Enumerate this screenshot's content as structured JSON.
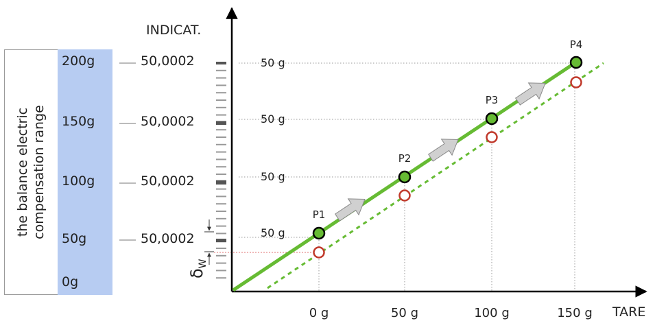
{
  "side_title": [
    "the balance electric",
    "compensation range"
  ],
  "capacities": [
    "200g",
    "150g",
    "100g",
    "50g",
    "0g"
  ],
  "indications": [
    "50,0002",
    "50,0002",
    "50,0002",
    "50,0002"
  ],
  "y_axis_label": "INDICAT.",
  "x_axis_label": "TARE",
  "tare_ticks": [
    "0 g",
    "50 g",
    "100 g",
    "150 g"
  ],
  "step_labels": [
    "50 g",
    "50 g",
    "50 g",
    "50 g"
  ],
  "points": [
    "P1",
    "P2",
    "P3",
    "P4"
  ],
  "delta_symbol": "δ",
  "delta_sub": "W",
  "colors": {
    "range_fill": "#b7ccf2",
    "ideal_line": "#66bb33",
    "point_fill": "#66bb33",
    "actual_point": "#c0392b",
    "arrow_fill": "#d0d0d0"
  }
}
